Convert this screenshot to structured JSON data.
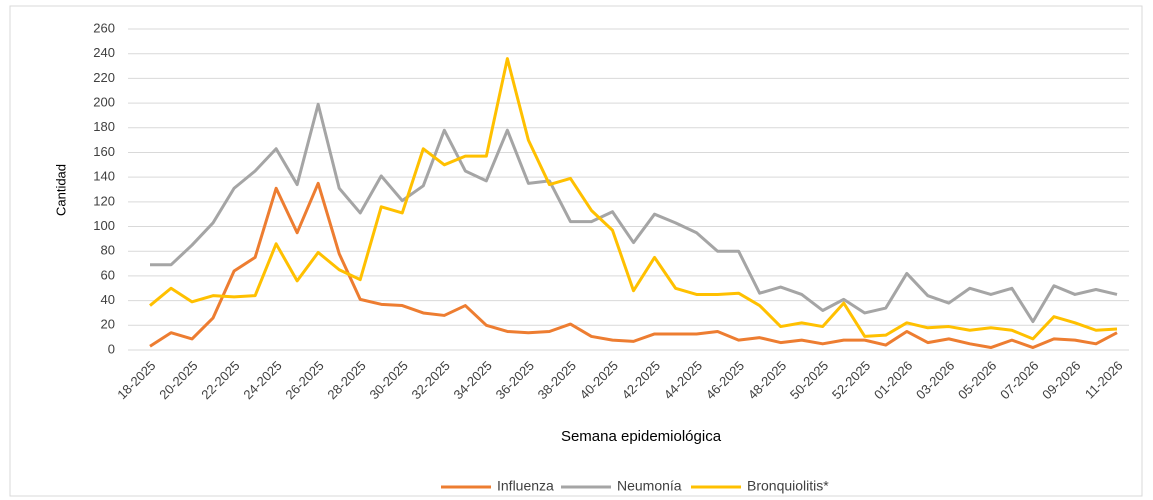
{
  "chart_data": {
    "type": "line",
    "x_label": "Semana epidemiológica",
    "y_label": "Cantidad",
    "categories": [
      "18-2025",
      null,
      "20-2025",
      null,
      "22-2025",
      null,
      "24-2025",
      null,
      "26-2025",
      null,
      "28-2025",
      null,
      "30-2025",
      null,
      "32-2025",
      null,
      "34-2025",
      null,
      "36-2025",
      null,
      "38-2025",
      null,
      "40-2025",
      null,
      "42-2025",
      null,
      "44-2025",
      null,
      "46-2025",
      null,
      "48-2025",
      null,
      "50-2025",
      null,
      "52-2025",
      null,
      "01-2026",
      null,
      "03-2026",
      null,
      "05-2026",
      null,
      "07-2026",
      null,
      "09-2026",
      null,
      "11-2026"
    ],
    "series": [
      {
        "name": "Influenza",
        "color": "#ed7d31",
        "values": [
          3,
          14,
          9,
          26,
          64,
          75,
          131,
          95,
          135,
          78,
          41,
          37,
          36,
          30,
          28,
          36,
          20,
          15,
          14,
          15,
          21,
          11,
          8,
          7,
          13,
          13,
          13,
          15,
          8,
          10,
          6,
          8,
          5,
          8,
          8,
          4,
          15,
          6,
          9,
          5,
          2,
          8,
          2,
          9,
          8,
          5,
          14
        ]
      },
      {
        "name": "Neumonía",
        "color": "#a5a5a5",
        "values": [
          69,
          69,
          85,
          103,
          131,
          145,
          163,
          134,
          199,
          131,
          111,
          141,
          121,
          133,
          178,
          145,
          137,
          178,
          135,
          137,
          104,
          104,
          112,
          87,
          110,
          103,
          95,
          80,
          80,
          46,
          51,
          45,
          32,
          41,
          30,
          34,
          62,
          44,
          38,
          50,
          45,
          50,
          23,
          52,
          45,
          49,
          45
        ]
      },
      {
        "name": "Bronquiolitis*",
        "color": "#ffc000",
        "values": [
          36,
          50,
          39,
          44,
          43,
          44,
          86,
          56,
          79,
          65,
          57,
          116,
          111,
          163,
          150,
          157,
          157,
          236,
          170,
          134,
          139,
          113,
          97,
          48,
          75,
          50,
          45,
          45,
          46,
          36,
          19,
          22,
          19,
          38,
          11,
          12,
          22,
          18,
          19,
          16,
          18,
          16,
          9,
          27,
          22,
          16,
          17
        ]
      }
    ],
    "ylim": [
      0,
      260
    ],
    "yticks": [
      0,
      20,
      40,
      60,
      80,
      100,
      120,
      140,
      160,
      180,
      200,
      220,
      240,
      260
    ],
    "grid": true,
    "legend": "bottom"
  }
}
